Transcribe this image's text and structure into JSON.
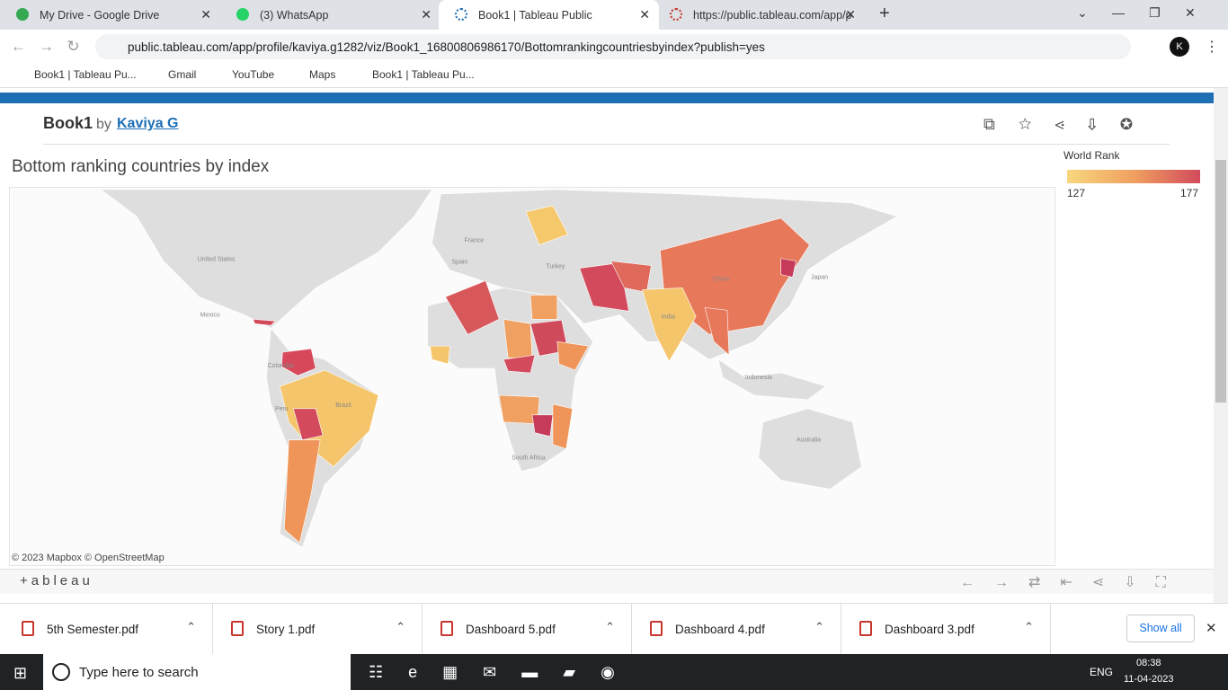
{
  "browser": {
    "tabs": [
      "My Drive - Google Drive",
      "(3) WhatsApp",
      "Book1 | Tableau Public",
      "https://public.tableau.com/app/p"
    ],
    "url": "public.tableau.com/app/profile/kaviya.g1282/viz/Book1_16800806986170/Bottomrankingcountriesbyindex?publish=yes",
    "avatar": "K",
    "bookmarks": [
      "Book1 | Tableau Pu...",
      "Gmail",
      "YouTube",
      "Maps",
      "Book1 | Tableau Pu..."
    ]
  },
  "header": {
    "title": "Book1",
    "by": "by",
    "author": "Kaviya G"
  },
  "viz": {
    "title": "Bottom ranking countries by index",
    "legend": {
      "title": "World Rank",
      "min": "127",
      "max": "177"
    },
    "map_labels": [
      "United States",
      "Mexico",
      "Colombia",
      "Peru",
      "Brazil",
      "France",
      "Spain",
      "Turkey",
      "China",
      "Japan",
      "India",
      "Indonesia",
      "Australia",
      "South Africa"
    ],
    "attribution": "© 2023 Mapbox © OpenStreetMap",
    "brand": "+ableau"
  },
  "downloads": {
    "files": [
      "5th Semester.pdf",
      "Story 1.pdf",
      "Dashboard 5.pdf",
      "Dashboard 4.pdf",
      "Dashboard 3.pdf"
    ],
    "show_all": "Show all"
  },
  "taskbar": {
    "search": "Type here to search",
    "language": "ENG",
    "time": "08:38",
    "date": "11-04-2023"
  }
}
